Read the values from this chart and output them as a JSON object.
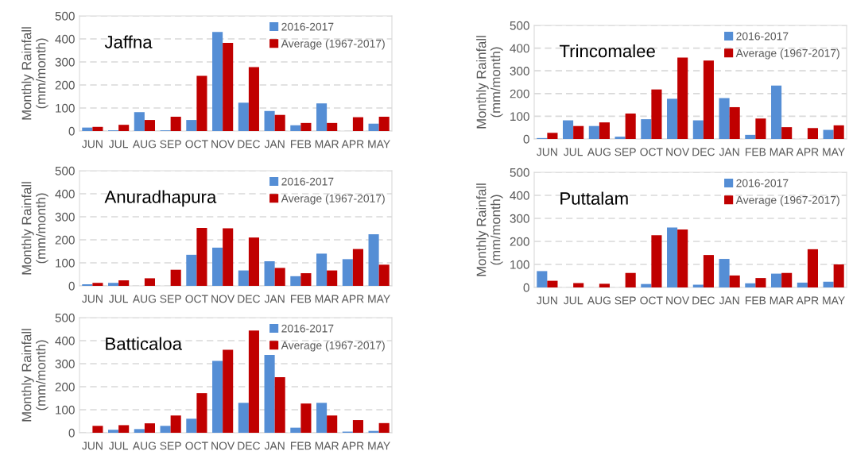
{
  "chart_data": [
    {
      "type": "bar",
      "title": "Jaffna",
      "ylabel": "Monthly Rainfall\n(mm/month)",
      "categories": [
        "JUN",
        "JUL",
        "AUG",
        "SEP",
        "OCT",
        "NOV",
        "DEC",
        "JAN",
        "FEB",
        "MAR",
        "APR",
        "MAY"
      ],
      "series": [
        {
          "name": "2016-2017",
          "color": "#558ed5",
          "values": [
            15,
            3,
            82,
            3,
            48,
            430,
            123,
            87,
            25,
            120,
            0,
            32
          ]
        },
        {
          "name": "Average (1967-2017)",
          "color": "#c00000",
          "values": [
            18,
            27,
            48,
            62,
            240,
            383,
            278,
            70,
            35,
            35,
            60,
            62
          ]
        }
      ],
      "ylim": [
        0,
        500
      ],
      "yticks": [
        0,
        100,
        200,
        300,
        400,
        500
      ],
      "grid": "y",
      "legend": "top right"
    },
    {
      "type": "bar",
      "title": "Trincomalee",
      "ylabel": "Monthly Rainfall\n(mm/month)",
      "categories": [
        "JUN",
        "JUL",
        "AUG",
        "SEP",
        "OCT",
        "NOV",
        "DEC",
        "JAN",
        "FEB",
        "MAR",
        "APR",
        "MAY"
      ],
      "series": [
        {
          "name": "2016-2017",
          "color": "#558ed5",
          "values": [
            4,
            82,
            57,
            10,
            87,
            177,
            82,
            180,
            18,
            235,
            0,
            40
          ]
        },
        {
          "name": "Average (1967-2017)",
          "color": "#c00000",
          "values": [
            27,
            57,
            73,
            112,
            218,
            358,
            345,
            140,
            90,
            52,
            48,
            60
          ]
        }
      ],
      "ylim": [
        0,
        500
      ],
      "yticks": [
        0,
        100,
        200,
        300,
        400,
        500
      ],
      "grid": "y",
      "legend": "top right"
    },
    {
      "type": "bar",
      "title": "Anuradhapura",
      "ylabel": "Monthly Rainfall\n(mm/month)",
      "categories": [
        "JUN",
        "JUL",
        "AUG",
        "SEP",
        "OCT",
        "NOV",
        "DEC",
        "JAN",
        "FEB",
        "MAR",
        "APR",
        "MAY"
      ],
      "series": [
        {
          "name": "2016-2017",
          "color": "#558ed5",
          "values": [
            7,
            13,
            0,
            0,
            135,
            166,
            67,
            107,
            42,
            140,
            116,
            224
          ]
        },
        {
          "name": "Average (1967-2017)",
          "color": "#c00000",
          "values": [
            13,
            24,
            33,
            70,
            252,
            250,
            210,
            78,
            55,
            67,
            160,
            92
          ]
        }
      ],
      "ylim": [
        0,
        500
      ],
      "yticks": [
        0,
        100,
        200,
        300,
        400,
        500
      ],
      "grid": "y",
      "legend": "top right"
    },
    {
      "type": "bar",
      "title": "Puttalam",
      "ylabel": "Monthly Rainfall\n(mm/month)",
      "categories": [
        "JUN",
        "JUL",
        "AUG",
        "SEP",
        "OCT",
        "NOV",
        "DEC",
        "JAN",
        "FEB",
        "MAR",
        "APR",
        "MAY"
      ],
      "series": [
        {
          "name": "2016-2017",
          "color": "#558ed5",
          "values": [
            71,
            0,
            0,
            0,
            15,
            260,
            12,
            124,
            18,
            60,
            21,
            25
          ]
        },
        {
          "name": "Average (1967-2017)",
          "color": "#c00000",
          "values": [
            29,
            19,
            16,
            63,
            227,
            252,
            141,
            52,
            41,
            63,
            166,
            100
          ]
        }
      ],
      "ylim": [
        0,
        500
      ],
      "yticks": [
        0,
        100,
        200,
        300,
        400,
        500
      ],
      "grid": "y",
      "legend": "top right"
    },
    {
      "type": "bar",
      "title": "Batticaloa",
      "ylabel": "Monthly Rainfall\n(mm/month)",
      "categories": [
        "JUN",
        "JUL",
        "AUG",
        "SEP",
        "OCT",
        "NOV",
        "DEC",
        "JAN",
        "FEB",
        "MAR",
        "APR",
        "MAY"
      ],
      "series": [
        {
          "name": "2016-2017",
          "color": "#558ed5",
          "values": [
            0,
            13,
            16,
            30,
            61,
            312,
            130,
            338,
            22,
            130,
            5,
            8
          ]
        },
        {
          "name": "Average (1967-2017)",
          "color": "#c00000",
          "values": [
            30,
            33,
            41,
            75,
            172,
            360,
            444,
            241,
            127,
            75,
            55,
            42
          ]
        }
      ],
      "ylim": [
        0,
        500
      ],
      "yticks": [
        0,
        100,
        200,
        300,
        400,
        500
      ],
      "grid": "y",
      "legend": "top right"
    }
  ]
}
